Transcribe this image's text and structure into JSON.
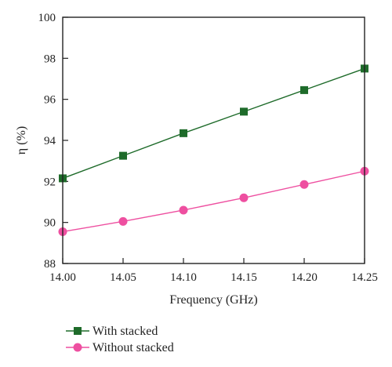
{
  "chart_data": {
    "type": "line",
    "title": "",
    "xlabel": "Frequency (GHz)",
    "ylabel": "η (%)",
    "xlim": [
      14.0,
      14.25
    ],
    "ylim": [
      88,
      100
    ],
    "x_ticks": [
      "14.00",
      "14.05",
      "14.10",
      "14.15",
      "14.20",
      "14.25"
    ],
    "y_ticks": [
      "88",
      "90",
      "92",
      "94",
      "96",
      "98",
      "100"
    ],
    "grid": false,
    "legend_position": "bottom-left",
    "x": [
      14.0,
      14.05,
      14.1,
      14.15,
      14.2,
      14.25
    ],
    "series": [
      {
        "name": "With stacked",
        "color": "#1e6b2a",
        "marker": "square",
        "values": [
          92.15,
          93.25,
          94.35,
          95.4,
          96.45,
          97.5
        ]
      },
      {
        "name": "Without stacked",
        "color": "#ee4fa0",
        "marker": "circle",
        "values": [
          89.55,
          90.05,
          90.6,
          91.2,
          91.85,
          92.5
        ]
      }
    ]
  }
}
